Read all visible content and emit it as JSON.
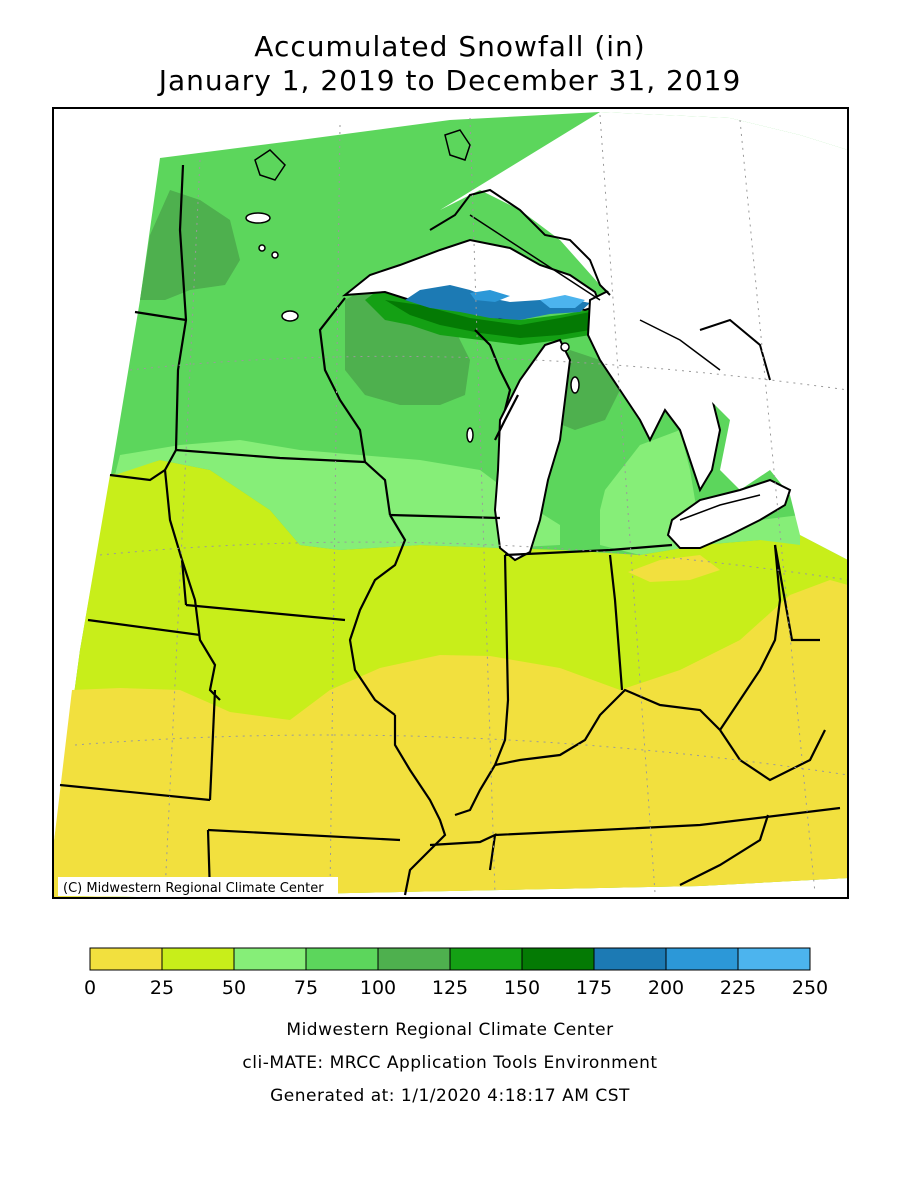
{
  "title_line1": "Accumulated Snowfall (in)",
  "title_line2": "January 1, 2019 to December 31, 2019",
  "copyright": "(C) Midwestern Regional Climate Center",
  "legend": {
    "bins": [
      {
        "color": "#f2e03e"
      },
      {
        "color": "#c8ee1a"
      },
      {
        "color": "#86ee78"
      },
      {
        "color": "#5cd65c"
      },
      {
        "color": "#4eb04e"
      },
      {
        "color": "#14a014"
      },
      {
        "color": "#047a04"
      },
      {
        "color": "#1c7ab4"
      },
      {
        "color": "#2c98d8"
      },
      {
        "color": "#4cb4ee"
      }
    ],
    "tick_labels": [
      "0",
      "25",
      "50",
      "75",
      "100",
      "125",
      "150",
      "175",
      "200",
      "225",
      "250"
    ]
  },
  "credits": {
    "line1": "Midwestern Regional Climate Center",
    "line2": "cli-MATE: MRCC Application Tools Environment",
    "line3": "Generated at: 1/1/2020 4:18:17 AM CST"
  }
}
